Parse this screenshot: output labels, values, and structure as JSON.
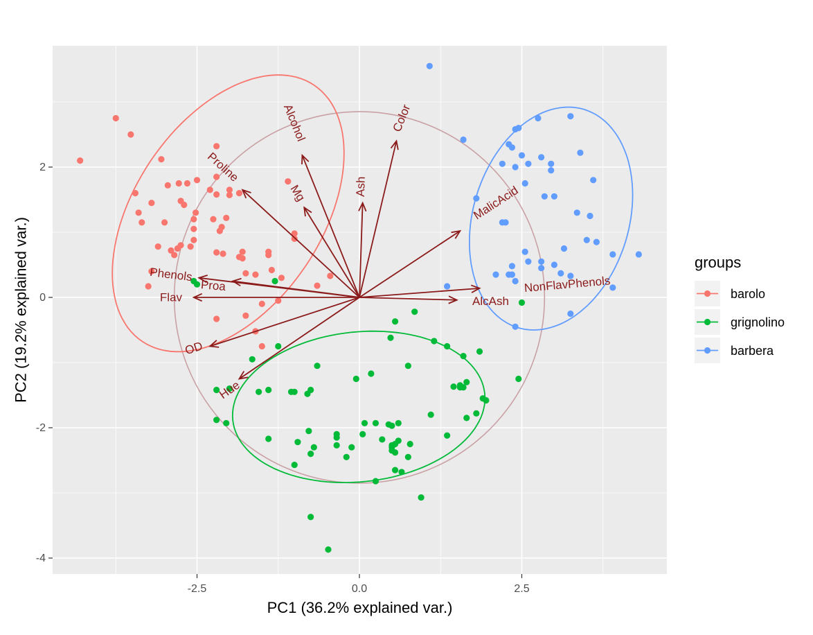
{
  "chart_data": {
    "type": "scatter",
    "subtype": "pca-biplot",
    "xlabel": "PC1 (36.2% explained var.)",
    "ylabel": "PC2 (19.2% explained var.)",
    "xlim": [
      -4.7,
      4.7
    ],
    "ylim": [
      -4.2,
      3.9
    ],
    "x_ticks": [
      -2.5,
      0.0,
      2.5
    ],
    "x_tick_labels": [
      "-2.5",
      "0.0",
      "2.5"
    ],
    "y_ticks": [
      -4,
      -2,
      0,
      2
    ],
    "y_tick_labels": [
      "-4",
      "-2",
      "0",
      "2"
    ],
    "grid": true,
    "legend_title": "groups",
    "legend_position": "right",
    "groups": [
      {
        "name": "barolo",
        "color": "#F8766D",
        "ellipse": {
          "cx": -2.02,
          "cy": 1.29,
          "rx": 2.37,
          "ry": 1.44,
          "angle": 56
        },
        "points": [
          [
            -4.3,
            2.1
          ],
          [
            -3.75,
            2.75
          ],
          [
            -3.52,
            2.5
          ],
          [
            -3.05,
            2.12
          ],
          [
            -3.0,
            1.15
          ],
          [
            -3.1,
            0.78
          ],
          [
            -3.2,
            1.45
          ],
          [
            -3.45,
            1.6
          ],
          [
            -3.4,
            1.3
          ],
          [
            -3.35,
            1.15
          ],
          [
            -3.2,
            0.4
          ],
          [
            -3.25,
            0.17
          ],
          [
            -2.2,
            2.32
          ],
          [
            -2.2,
            1.85
          ],
          [
            -2.3,
            1.65
          ],
          [
            -2.5,
            1.8
          ],
          [
            -2.52,
            1.3
          ],
          [
            -2.55,
            1.2
          ],
          [
            -2.55,
            1.05
          ],
          [
            -2.55,
            0.88
          ],
          [
            -2.6,
            0.78
          ],
          [
            -2.75,
            1.48
          ],
          [
            -2.7,
            1.42
          ],
          [
            -2.65,
            1.75
          ],
          [
            -2.2,
            1.58
          ],
          [
            -2.25,
            1.2
          ],
          [
            -2.15,
            1.02
          ],
          [
            -2.12,
            1.08
          ],
          [
            -2.05,
            1.22
          ],
          [
            -2.0,
            1.65
          ],
          [
            -2.0,
            1.57
          ],
          [
            -1.85,
            1.6
          ],
          [
            -2.8,
            0.75
          ],
          [
            -2.75,
            0.8
          ],
          [
            -2.9,
            0.72
          ],
          [
            -2.85,
            0.65
          ],
          [
            -2.95,
            1.72
          ],
          [
            -2.78,
            1.75
          ],
          [
            -2.2,
            0.69
          ],
          [
            -2.1,
            0.67
          ],
          [
            -1.8,
            0.7
          ],
          [
            -1.8,
            0.6
          ],
          [
            -1.85,
            0.62
          ],
          [
            -1.4,
            0.7
          ],
          [
            -1.4,
            0.65
          ],
          [
            -1.1,
            1.78
          ],
          [
            -1.0,
            0.98
          ],
          [
            -1.0,
            0.9
          ],
          [
            -1.35,
            0.42
          ],
          [
            -1.75,
            0.37
          ],
          [
            -1.6,
            0.35
          ],
          [
            -1.25,
            -0.05
          ],
          [
            -1.2,
            0.3
          ],
          [
            -0.65,
            0.18
          ],
          [
            -0.45,
            0.33
          ],
          [
            -1.5,
            -0.1
          ],
          [
            -1.75,
            -0.28
          ],
          [
            -2.2,
            -0.33
          ],
          [
            -1.6,
            -0.52
          ],
          [
            -1.5,
            -0.75
          ]
        ]
      },
      {
        "name": "grignolino",
        "color": "#00BA38",
        "ellipse": {
          "cx": -0.01,
          "cy": -1.68,
          "rx": 1.95,
          "ry": 1.15,
          "angle": 6
        },
        "points": [
          [
            -2.55,
            0.25
          ],
          [
            -2.5,
            0.2
          ],
          [
            -1.3,
            0.25
          ],
          [
            -1.25,
            -0.75
          ],
          [
            -1.65,
            -0.95
          ],
          [
            -1.55,
            -1.45
          ],
          [
            -1.4,
            -1.42
          ],
          [
            -2.2,
            -1.42
          ],
          [
            -2.0,
            -1.4
          ],
          [
            -2.2,
            -1.88
          ],
          [
            -2.05,
            -1.93
          ],
          [
            -1.4,
            -2.17
          ],
          [
            -1.05,
            -1.45
          ],
          [
            -1.0,
            -1.45
          ],
          [
            -0.8,
            -1.48
          ],
          [
            -0.75,
            -1.42
          ],
          [
            -0.65,
            -1.05
          ],
          [
            -0.78,
            -2.05
          ],
          [
            -0.95,
            -2.22
          ],
          [
            -1.0,
            -2.57
          ],
          [
            -0.75,
            -2.4
          ],
          [
            -0.7,
            -2.3
          ],
          [
            -0.35,
            -2.1
          ],
          [
            -0.35,
            -2.15
          ],
          [
            -0.35,
            -2.27
          ],
          [
            -0.2,
            -2.45
          ],
          [
            -0.12,
            -2.3
          ],
          [
            -0.05,
            -1.25
          ],
          [
            0.18,
            -1.17
          ],
          [
            0.08,
            -1.93
          ],
          [
            0.25,
            -1.93
          ],
          [
            0.05,
            -2.1
          ],
          [
            0.35,
            -2.18
          ],
          [
            0.45,
            -1.95
          ],
          [
            0.5,
            -1.97
          ],
          [
            0.5,
            -2.27
          ],
          [
            0.5,
            -2.3
          ],
          [
            0.5,
            -2.35
          ],
          [
            0.55,
            -2.25
          ],
          [
            0.55,
            -2.38
          ],
          [
            0.6,
            -1.93
          ],
          [
            0.6,
            -2.2
          ],
          [
            0.78,
            -2.25
          ],
          [
            0.75,
            -1.05
          ],
          [
            0.48,
            -0.62
          ],
          [
            0.55,
            -0.37
          ],
          [
            0.85,
            -0.22
          ],
          [
            0.75,
            -2.45
          ],
          [
            0.55,
            -2.65
          ],
          [
            0.65,
            -2.68
          ],
          [
            0.25,
            -2.82
          ],
          [
            0.95,
            -3.07
          ],
          [
            1.15,
            -0.67
          ],
          [
            1.35,
            -0.75
          ],
          [
            1.1,
            -1.8
          ],
          [
            1.35,
            -2.12
          ],
          [
            1.45,
            -1.37
          ],
          [
            1.55,
            -1.38
          ],
          [
            1.55,
            -1.35
          ],
          [
            1.6,
            -0.9
          ],
          [
            1.6,
            -1.38
          ],
          [
            1.65,
            -1.3
          ],
          [
            1.65,
            -1.85
          ],
          [
            1.8,
            -1.78
          ],
          [
            1.85,
            -0.83
          ],
          [
            1.9,
            -1.55
          ],
          [
            1.95,
            -1.58
          ],
          [
            2.5,
            -0.08
          ],
          [
            2.45,
            -1.25
          ],
          [
            -0.75,
            -3.37
          ],
          [
            -0.48,
            -3.87
          ]
        ]
      },
      {
        "name": "barbera",
        "color": "#619CFF",
        "ellipse": {
          "cx": 2.95,
          "cy": 1.21,
          "rx": 1.75,
          "ry": 1.2,
          "angle": 73
        },
        "points": [
          [
            1.08,
            3.55
          ],
          [
            1.6,
            2.42
          ],
          [
            2.2,
            2.05
          ],
          [
            2.3,
            2.35
          ],
          [
            2.35,
            2.3
          ],
          [
            2.4,
            2.0
          ],
          [
            2.4,
            2.58
          ],
          [
            2.45,
            2.6
          ],
          [
            2.5,
            2.18
          ],
          [
            2.6,
            2.05
          ],
          [
            2.75,
            2.75
          ],
          [
            2.8,
            2.15
          ],
          [
            3.25,
            2.78
          ],
          [
            2.55,
            1.75
          ],
          [
            2.85,
            1.55
          ],
          [
            3.0,
            1.55
          ],
          [
            2.95,
            1.95
          ],
          [
            2.95,
            2.05
          ],
          [
            3.4,
            2.22
          ],
          [
            3.6,
            1.8
          ],
          [
            3.35,
            1.3
          ],
          [
            3.55,
            1.25
          ],
          [
            3.65,
            0.85
          ],
          [
            3.5,
            0.88
          ],
          [
            2.2,
            1.15
          ],
          [
            2.25,
            1.15
          ],
          [
            1.8,
            1.52
          ],
          [
            2.1,
            0.35
          ],
          [
            2.3,
            0.35
          ],
          [
            2.35,
            0.35
          ],
          [
            2.4,
            0.25
          ],
          [
            2.35,
            0.48
          ],
          [
            2.55,
            0.7
          ],
          [
            2.6,
            0.55
          ],
          [
            2.8,
            0.45
          ],
          [
            2.8,
            0.55
          ],
          [
            3.0,
            0.5
          ],
          [
            3.15,
            0.75
          ],
          [
            3.1,
            0.37
          ],
          [
            3.25,
            0.33
          ],
          [
            3.25,
            -0.25
          ],
          [
            2.4,
            -0.45
          ],
          [
            1.35,
            0.17
          ],
          [
            3.9,
            0.66
          ],
          [
            4.3,
            0.66
          ],
          [
            3.9,
            0.15
          ]
        ]
      }
    ],
    "correlation_circle": {
      "cx": 0,
      "cy": 0,
      "r": 2.85,
      "color": "#c9a0a4"
    },
    "arrow_color": "#8b1a1a",
    "loadings": [
      {
        "name": "Alcohol",
        "x": -0.88,
        "y": 2.18
      },
      {
        "name": "Color",
        "x": 0.57,
        "y": 2.4
      },
      {
        "name": "Ash",
        "x": 0.05,
        "y": 1.45
      },
      {
        "name": "Mg",
        "x": -0.85,
        "y": 1.38
      },
      {
        "name": "Proline",
        "x": -1.8,
        "y": 1.65
      },
      {
        "name": "MalicAcid",
        "x": 1.55,
        "y": 1.02
      },
      {
        "name": "NonFlavPhenols",
        "x": 1.85,
        "y": 0.14
      },
      {
        "name": "AlcAsh",
        "x": 1.5,
        "y": -0.04
      },
      {
        "name": "Phenols",
        "x": -2.47,
        "y": 0.3
      },
      {
        "name": "Proa",
        "x": -1.95,
        "y": 0.25
      },
      {
        "name": "Flav",
        "x": -2.55,
        "y": 0.0
      },
      {
        "name": "OD",
        "x": -2.3,
        "y": -0.75
      },
      {
        "name": "Hue",
        "x": -1.85,
        "y": -1.25
      }
    ],
    "loading_labels": [
      {
        "name": "Alcohol",
        "x": -1.0,
        "y": 2.68,
        "angle": 68
      },
      {
        "name": "Color",
        "x": 0.65,
        "y": 2.75,
        "angle": -68
      },
      {
        "name": "Ash",
        "x": 0.02,
        "y": 1.7,
        "angle": -88
      },
      {
        "name": "Mg",
        "x": -0.95,
        "y": 1.6,
        "angle": 58
      },
      {
        "name": "Proline",
        "x": -2.1,
        "y": 2.0,
        "angle": 42
      },
      {
        "name": "MalicAcid",
        "x": 2.1,
        "y": 1.45,
        "angle": -33
      },
      {
        "name": "NonFlavPhenols",
        "x": 3.2,
        "y": 0.2,
        "angle": -5
      },
      {
        "name": "AlcAsh",
        "x": 2.02,
        "y": -0.06,
        "angle": 0
      },
      {
        "name": "Phenols",
        "x": -2.9,
        "y": 0.35,
        "angle": 7
      },
      {
        "name": "Proa",
        "x": -2.25,
        "y": 0.18,
        "angle": 5
      },
      {
        "name": "Flav",
        "x": -2.9,
        "y": 0.0,
        "angle": 0
      },
      {
        "name": "OD",
        "x": -2.55,
        "y": -0.78,
        "angle": -18
      },
      {
        "name": "Hue",
        "x": -2.0,
        "y": -1.42,
        "angle": -35
      }
    ]
  }
}
